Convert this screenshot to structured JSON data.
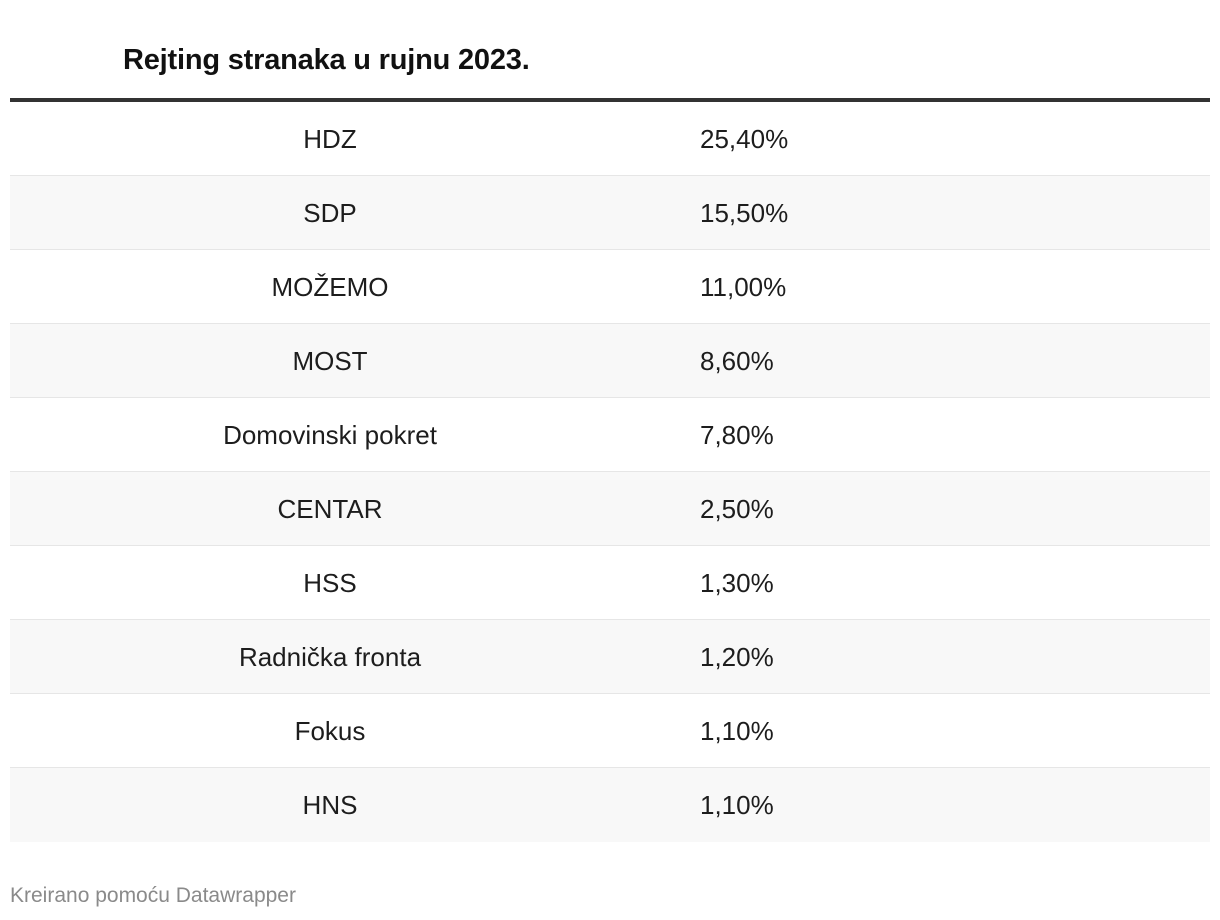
{
  "title": "Rejting stranaka u rujnu 2023.",
  "footer": "Kreirano pomoću Datawrapper",
  "chart_data": {
    "type": "table",
    "title": "Rejting stranaka u rujnu 2023.",
    "rows": [
      {
        "party": "HDZ",
        "value": "25,40%"
      },
      {
        "party": "SDP",
        "value": "15,50%"
      },
      {
        "party": "MOŽEMO",
        "value": "11,00%"
      },
      {
        "party": "MOST",
        "value": "8,60%"
      },
      {
        "party": "Domovinski pokret",
        "value": "7,80%"
      },
      {
        "party": "CENTAR",
        "value": "2,50%"
      },
      {
        "party": "HSS",
        "value": "1,30%"
      },
      {
        "party": "Radnička fronta",
        "value": "1,20%"
      },
      {
        "party": "Fokus",
        "value": "1,10%"
      },
      {
        "party": "HNS",
        "value": "1,10%"
      }
    ]
  }
}
